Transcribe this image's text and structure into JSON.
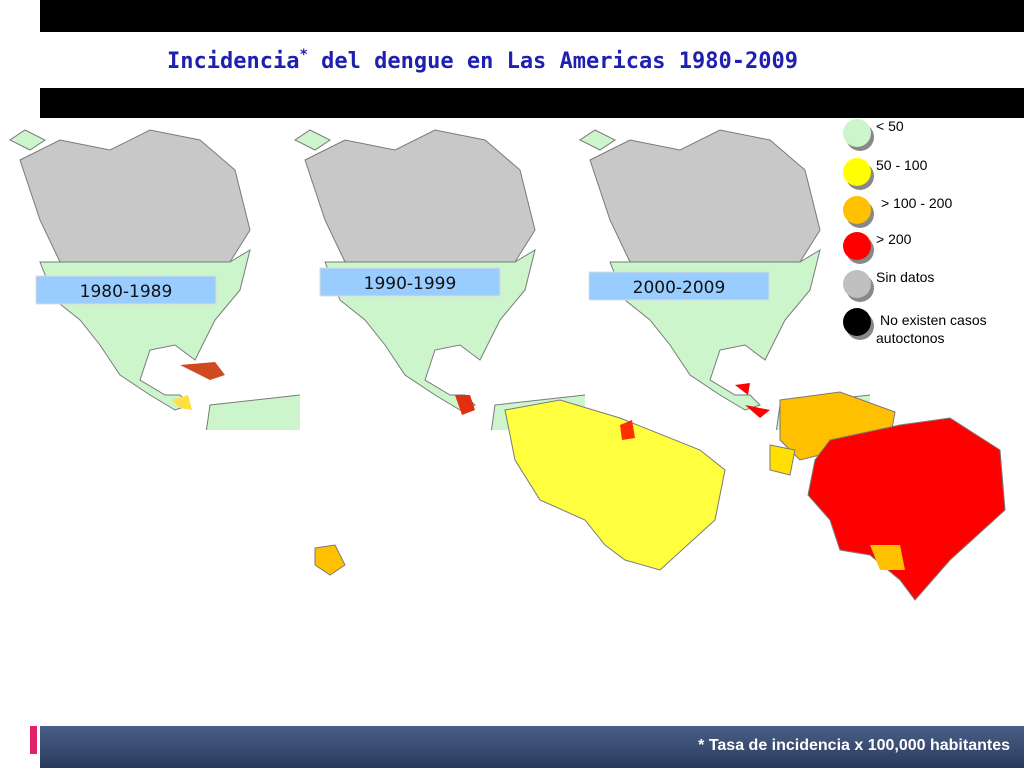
{
  "header": {
    "title": "Incidencia",
    "title_mark": "*",
    "title_rest": " del dengue en Las Americas 1980-2009"
  },
  "panels": [
    {
      "label": "1980-1989"
    },
    {
      "label": "1990-1999"
    },
    {
      "label": "2000-2009"
    }
  ],
  "legend": [
    {
      "label": "< 50",
      "color": "#ccf5cc"
    },
    {
      "label": "50 - 100",
      "color": "#ffff00"
    },
    {
      "label": "> 100 - 200",
      "color": "#ffc000"
    },
    {
      "label": "> 200",
      "color": "#ff0000"
    },
    {
      "label": "Sin datos",
      "color": "#c0c0c0"
    },
    {
      "label": "No existen casos autoctonos",
      "color": "#000000"
    }
  ],
  "footnote": "* Tasa de incidencia x 100,000 habitantes"
}
